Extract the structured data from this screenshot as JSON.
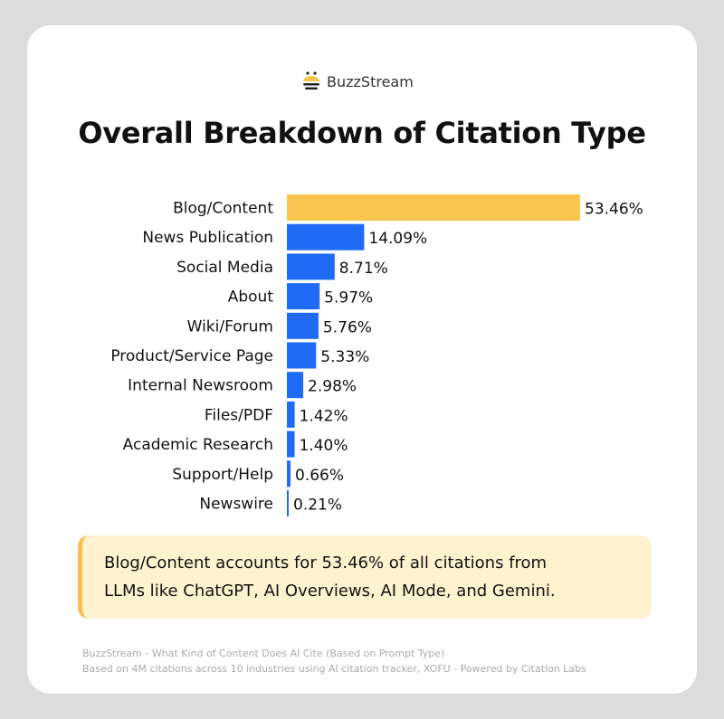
{
  "brand": {
    "name": "BuzzStream",
    "icon": "bee-icon"
  },
  "chart_data": {
    "type": "bar",
    "orientation": "horizontal",
    "title": "Overall Breakdown of Citation Type",
    "categories": [
      "Blog/Content",
      "News Publication",
      "Social Media",
      "About",
      "Wiki/Forum",
      "Product/Service Page",
      "Internal Newsroom",
      "Files/PDF",
      "Academic Research",
      "Support/Help",
      "Newswire"
    ],
    "values": [
      53.46,
      14.09,
      8.71,
      5.97,
      5.76,
      5.33,
      2.98,
      1.42,
      1.4,
      0.66,
      0.21
    ],
    "data_labels": [
      "53.46%",
      "14.09%",
      "8.71%",
      "5.97%",
      "5.76%",
      "5.33%",
      "2.98%",
      "1.42%",
      "1.40%",
      "0.66%",
      "0.21%"
    ],
    "unit": "%",
    "colors": {
      "highlight": "#f9c54f",
      "default": "#1f6bf5"
    },
    "grid": false
  },
  "callout": {
    "line1": "Blog/Content accounts for 53.46% of all citations from",
    "line2": "LLMs like ChatGPT, AI Overviews, AI Mode, and Gemini."
  },
  "footer": {
    "line1": "BuzzStream - What Kind of Content Does AI Cite (Based on Prompt Type)",
    "line2": "Based on 4M citations across 10 industries using AI citation tracker, XOFU - Powered by Citation Labs"
  }
}
